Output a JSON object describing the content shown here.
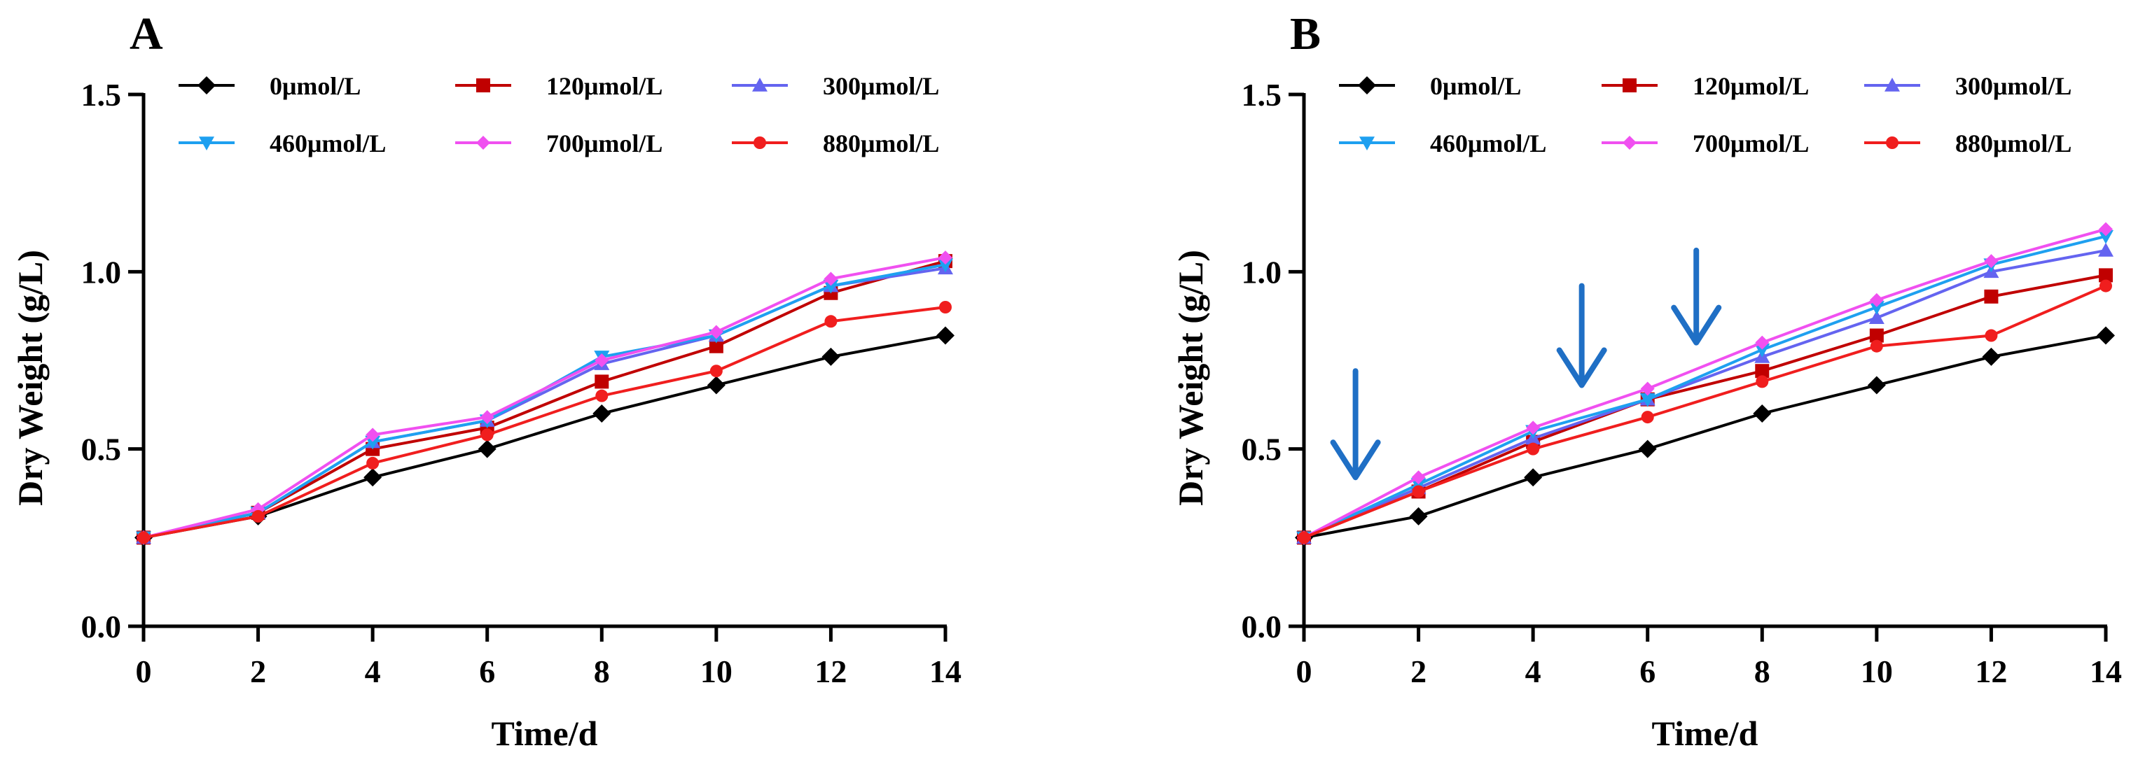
{
  "chart_data": [
    {
      "type": "line",
      "panel_label": "A",
      "xlabel": "Time/d",
      "ylabel": "Dry Weight (g/L)",
      "xlim": [
        0,
        14
      ],
      "ylim": [
        0,
        1.5
      ],
      "xticks": [
        0,
        2,
        4,
        6,
        8,
        10,
        12,
        14
      ],
      "xtick_labels": [
        "0",
        "2",
        "4",
        "6",
        "8",
        "10",
        "12",
        "14"
      ],
      "yticks": [
        0,
        0.5,
        1.0,
        1.5
      ],
      "ytick_labels": [
        "0.0",
        "0.5",
        "1.0",
        "1.5"
      ],
      "legend_position": "top",
      "x": [
        0,
        2,
        4,
        6,
        8,
        10,
        12,
        14
      ],
      "series": [
        {
          "name": "0μmol/L",
          "color": "#000000",
          "marker": "diamond",
          "values": [
            0.25,
            0.31,
            0.42,
            0.5,
            0.6,
            0.68,
            0.76,
            0.82
          ]
        },
        {
          "name": "120μmol/L",
          "color": "#c00000",
          "marker": "square",
          "values": [
            0.25,
            0.32,
            0.5,
            0.56,
            0.69,
            0.79,
            0.94,
            1.03
          ]
        },
        {
          "name": "300μmol/L",
          "color": "#6464f0",
          "marker": "triangle-up",
          "values": [
            0.25,
            0.32,
            0.52,
            0.58,
            0.74,
            0.82,
            0.96,
            1.01
          ]
        },
        {
          "name": "460μmol/L",
          "color": "#1ea0f0",
          "marker": "triangle-down",
          "values": [
            0.25,
            0.32,
            0.52,
            0.58,
            0.76,
            0.82,
            0.96,
            1.02
          ]
        },
        {
          "name": "700μmol/L",
          "color": "#f050f0",
          "marker": "diamond-small",
          "values": [
            0.25,
            0.33,
            0.54,
            0.59,
            0.75,
            0.83,
            0.98,
            1.04
          ]
        },
        {
          "name": "880μmol/L",
          "color": "#f01e1e",
          "marker": "circle",
          "values": [
            0.25,
            0.31,
            0.46,
            0.54,
            0.65,
            0.72,
            0.86,
            0.9
          ]
        }
      ]
    },
    {
      "type": "line",
      "panel_label": "B",
      "xlabel": "Time/d",
      "ylabel": "Dry Weight (g/L)",
      "xlim": [
        0,
        14
      ],
      "ylim": [
        0,
        1.5
      ],
      "xticks": [
        0,
        2,
        4,
        6,
        8,
        10,
        12,
        14
      ],
      "xtick_labels": [
        "0",
        "2",
        "4",
        "6",
        "8",
        "10",
        "12",
        "14"
      ],
      "yticks": [
        0,
        0.5,
        1.0,
        1.5
      ],
      "ytick_labels": [
        "0.0",
        "0.5",
        "1.0",
        "1.5"
      ],
      "legend_position": "top",
      "x": [
        0,
        2,
        4,
        6,
        8,
        10,
        12,
        14
      ],
      "series": [
        {
          "name": "0μmol/L",
          "color": "#000000",
          "marker": "diamond",
          "values": [
            0.25,
            0.31,
            0.42,
            0.5,
            0.6,
            0.68,
            0.76,
            0.82
          ]
        },
        {
          "name": "120μmol/L",
          "color": "#c00000",
          "marker": "square",
          "values": [
            0.25,
            0.38,
            0.52,
            0.64,
            0.72,
            0.82,
            0.93,
            0.99
          ]
        },
        {
          "name": "300μmol/L",
          "color": "#6464f0",
          "marker": "triangle-up",
          "values": [
            0.25,
            0.39,
            0.53,
            0.64,
            0.76,
            0.87,
            1.0,
            1.06
          ]
        },
        {
          "name": "460μmol/L",
          "color": "#1ea0f0",
          "marker": "triangle-down",
          "values": [
            0.25,
            0.4,
            0.55,
            0.64,
            0.78,
            0.9,
            1.02,
            1.1
          ]
        },
        {
          "name": "700μmol/L",
          "color": "#f050f0",
          "marker": "diamond-small",
          "values": [
            0.25,
            0.42,
            0.56,
            0.67,
            0.8,
            0.92,
            1.03,
            1.12
          ]
        },
        {
          "name": "880μmol/L",
          "color": "#f01e1e",
          "marker": "circle",
          "values": [
            0.25,
            0.38,
            0.5,
            0.59,
            0.69,
            0.79,
            0.82,
            0.96
          ]
        }
      ],
      "annotations": [
        {
          "type": "arrow",
          "x": 0.9,
          "y_from": 0.72,
          "y_to": 0.42,
          "color": "#1f6fc5"
        },
        {
          "type": "arrow",
          "x": 4.85,
          "y_from": 0.96,
          "y_to": 0.68,
          "color": "#1f6fc5"
        },
        {
          "type": "arrow",
          "x": 6.85,
          "y_from": 1.06,
          "y_to": 0.8,
          "color": "#1f6fc5"
        }
      ]
    }
  ]
}
